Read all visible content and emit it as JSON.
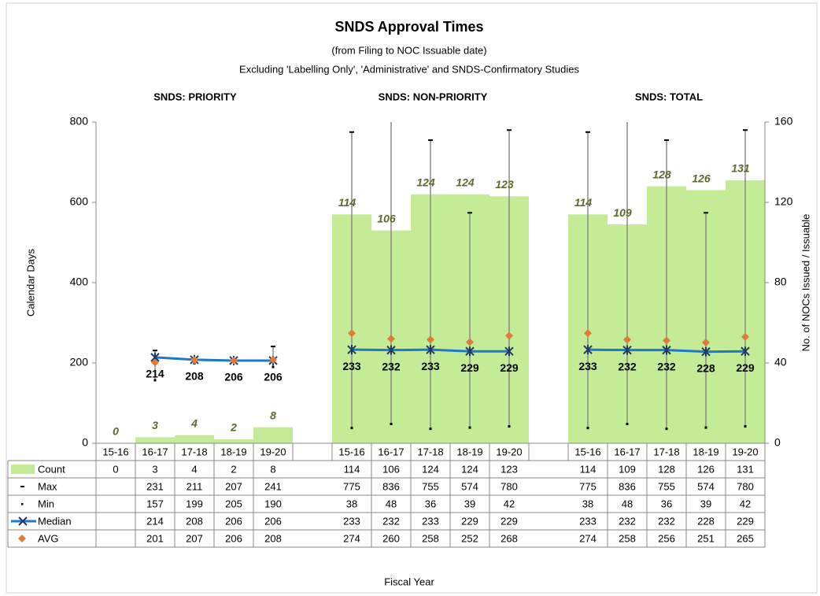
{
  "chart_data": {
    "type": "combo",
    "title": "SNDS  Approval Times",
    "subtitle": "(from Filing to NOC Issuable date)",
    "subtitle2": "Excluding 'Labelling Only', 'Administrative' and SNDS-Confirmatory  Studies",
    "group_labels": [
      "SNDS: PRIORITY",
      "SNDS: NON-PRIORITY",
      "SNDS: TOTAL"
    ],
    "y_label": "Calendar Days",
    "y2_label": "No. of NOCs Issued / Issuable",
    "x_label": "Fiscal Year",
    "categories": [
      "15-16",
      "16-17",
      "17-18",
      "18-19",
      "19-20",
      null,
      "15-16",
      "16-17",
      "17-18",
      "18-19",
      "19-20",
      null,
      "15-16",
      "16-17",
      "17-18",
      "18-19",
      "19-20"
    ],
    "ylim": [
      0,
      800
    ],
    "yticks": [
      0,
      200,
      400,
      600,
      800
    ],
    "y2lim": [
      0,
      160
    ],
    "y2ticks": [
      0,
      40,
      80,
      120,
      160
    ],
    "series": [
      {
        "name": "Count",
        "type": "bar",
        "axis": "y2",
        "color": "#c4eb96",
        "values": [
          0,
          3,
          4,
          2,
          8,
          null,
          114,
          106,
          124,
          124,
          123,
          null,
          114,
          109,
          128,
          126,
          131
        ]
      },
      {
        "name": "Max",
        "type": "marker",
        "color": "#000000",
        "values": [
          null,
          231,
          211,
          207,
          241,
          null,
          775,
          836,
          755,
          574,
          780,
          null,
          775,
          836,
          755,
          574,
          780
        ]
      },
      {
        "name": "Min",
        "type": "marker",
        "color": "#000000",
        "values": [
          null,
          157,
          199,
          205,
          190,
          null,
          38,
          48,
          36,
          39,
          42,
          null,
          38,
          48,
          36,
          39,
          42
        ]
      },
      {
        "name": "Median",
        "type": "line",
        "color": "#1f78c8",
        "values": [
          null,
          214,
          208,
          206,
          206,
          null,
          233,
          232,
          233,
          229,
          229,
          null,
          233,
          232,
          232,
          228,
          229
        ]
      },
      {
        "name": "AVG",
        "type": "marker",
        "color": "#e07b39",
        "values": [
          null,
          201,
          207,
          206,
          208,
          null,
          274,
          260,
          258,
          252,
          268,
          null,
          274,
          258,
          256,
          251,
          265
        ]
      }
    ]
  }
}
